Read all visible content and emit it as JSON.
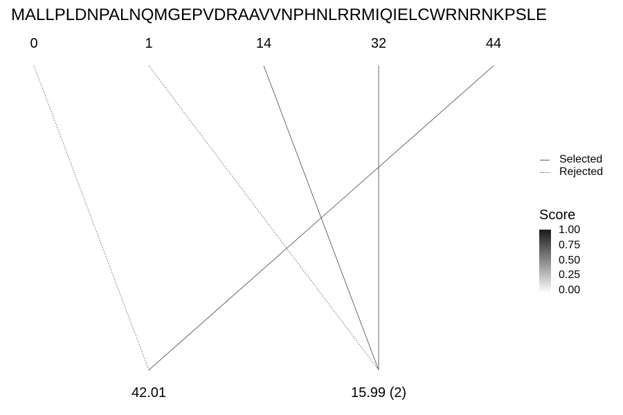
{
  "sequence": "MALLPLDNPALNQMGEPVDRAAVVNPHNLRRMIQIELCWRNRNKPSLE",
  "top_labels": [
    "0",
    "1",
    "14",
    "32",
    "44"
  ],
  "bottom_labels": [
    "42.01",
    "15.99 (2)"
  ],
  "connections": [
    {
      "from": "0",
      "to": "42.01",
      "status": "Rejected"
    },
    {
      "from": "1",
      "to": "15.99 (2)",
      "status": "Rejected"
    },
    {
      "from": "14",
      "to": "15.99 (2)",
      "status": "Selected"
    },
    {
      "from": "32",
      "to": "15.99 (2)",
      "status": "Selected"
    },
    {
      "from": "44",
      "to": "42.01",
      "status": "Selected"
    }
  ],
  "legend": {
    "selected_label": "Selected",
    "rejected_label": "Rejected"
  },
  "score_scale": {
    "title": "Score",
    "ticks": [
      "1.00",
      "0.75",
      "0.50",
      "0.25",
      "0.00"
    ],
    "color_high": "#1a1a1a",
    "color_low": "#ffffff"
  },
  "line_color": "#666666"
}
